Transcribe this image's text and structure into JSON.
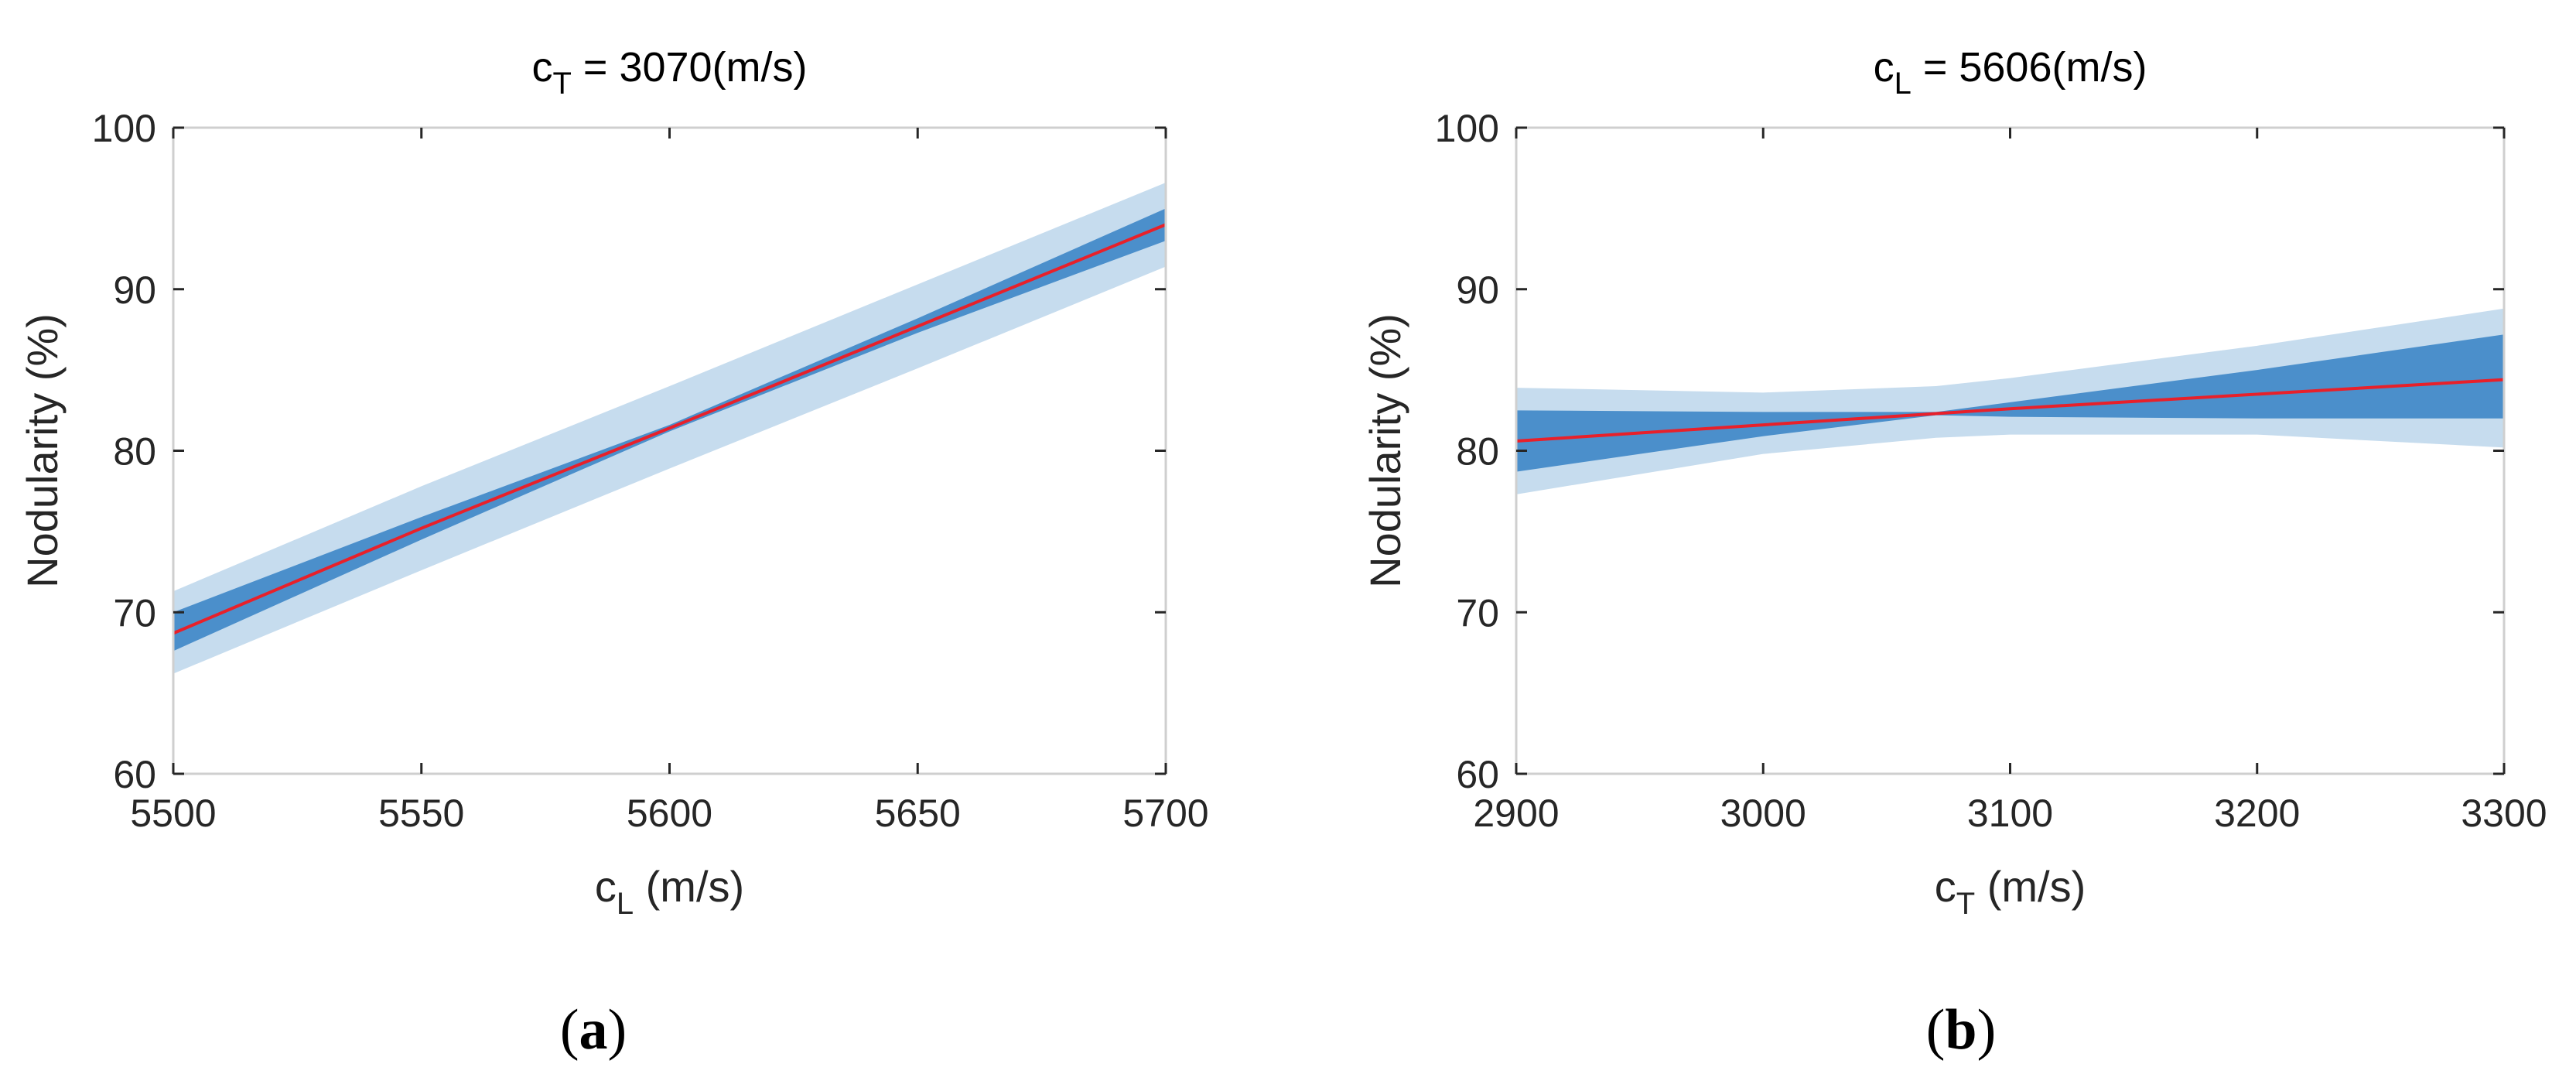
{
  "chart_data": [
    {
      "type": "line",
      "panel_label": "a",
      "title": {
        "main": "c",
        "sub": "T",
        "rest": " = 3070(m/s)"
      },
      "xlabel": {
        "main": "c",
        "sub": "L",
        "rest": " (m/s)"
      },
      "ylabel": "Nodularity (%)",
      "xlim": [
        5500,
        5700
      ],
      "ylim": [
        60,
        100
      ],
      "xticks": [
        5500,
        5550,
        5600,
        5650,
        5700
      ],
      "yticks": [
        60,
        70,
        80,
        90,
        100
      ],
      "x": [
        5500,
        5550,
        5600,
        5650,
        5700
      ],
      "series": [
        {
          "name": "fit",
          "color": "#e8202a",
          "values": [
            68.7,
            75.2,
            81.4,
            87.7,
            94.0
          ]
        },
        {
          "name": "outer-band",
          "color": "#c6dcee",
          "lower": [
            66.2,
            72.6,
            78.9,
            85.1,
            91.4
          ],
          "upper": [
            71.3,
            77.8,
            84.0,
            90.3,
            96.6
          ]
        },
        {
          "name": "inner-band",
          "color": "#4b8fcb",
          "lower": [
            67.6,
            74.5,
            81.2,
            87.3,
            93.0
          ],
          "upper": [
            70.0,
            75.9,
            81.6,
            88.2,
            95.0
          ]
        }
      ]
    },
    {
      "type": "line",
      "panel_label": "b",
      "title": {
        "main": "c",
        "sub": "L",
        "rest": " = 5606(m/s)"
      },
      "xlabel": {
        "main": "c",
        "sub": "T",
        "rest": " (m/s)"
      },
      "ylabel": "Nodularity (%)",
      "xlim": [
        2900,
        3300
      ],
      "ylim": [
        60,
        100
      ],
      "xticks": [
        2900,
        3000,
        3100,
        3200,
        3300
      ],
      "yticks": [
        60,
        70,
        80,
        90,
        100
      ],
      "x": [
        2900,
        3000,
        3070,
        3100,
        3200,
        3300
      ],
      "series": [
        {
          "name": "fit",
          "color": "#e8202a",
          "values": [
            80.6,
            81.6,
            82.3,
            82.6,
            83.5,
            84.4
          ]
        },
        {
          "name": "outer-band",
          "color": "#c6dcee",
          "lower": [
            77.3,
            79.8,
            80.8,
            81.0,
            81.0,
            80.2
          ],
          "upper": [
            83.9,
            83.6,
            84.0,
            84.5,
            86.5,
            88.8
          ]
        },
        {
          "name": "inner-band",
          "color": "#4b8fcb",
          "lower": [
            78.7,
            80.9,
            82.2,
            82.1,
            82.0,
            82.0
          ],
          "upper": [
            82.5,
            82.4,
            82.4,
            83.0,
            85.0,
            87.2
          ]
        }
      ]
    }
  ]
}
